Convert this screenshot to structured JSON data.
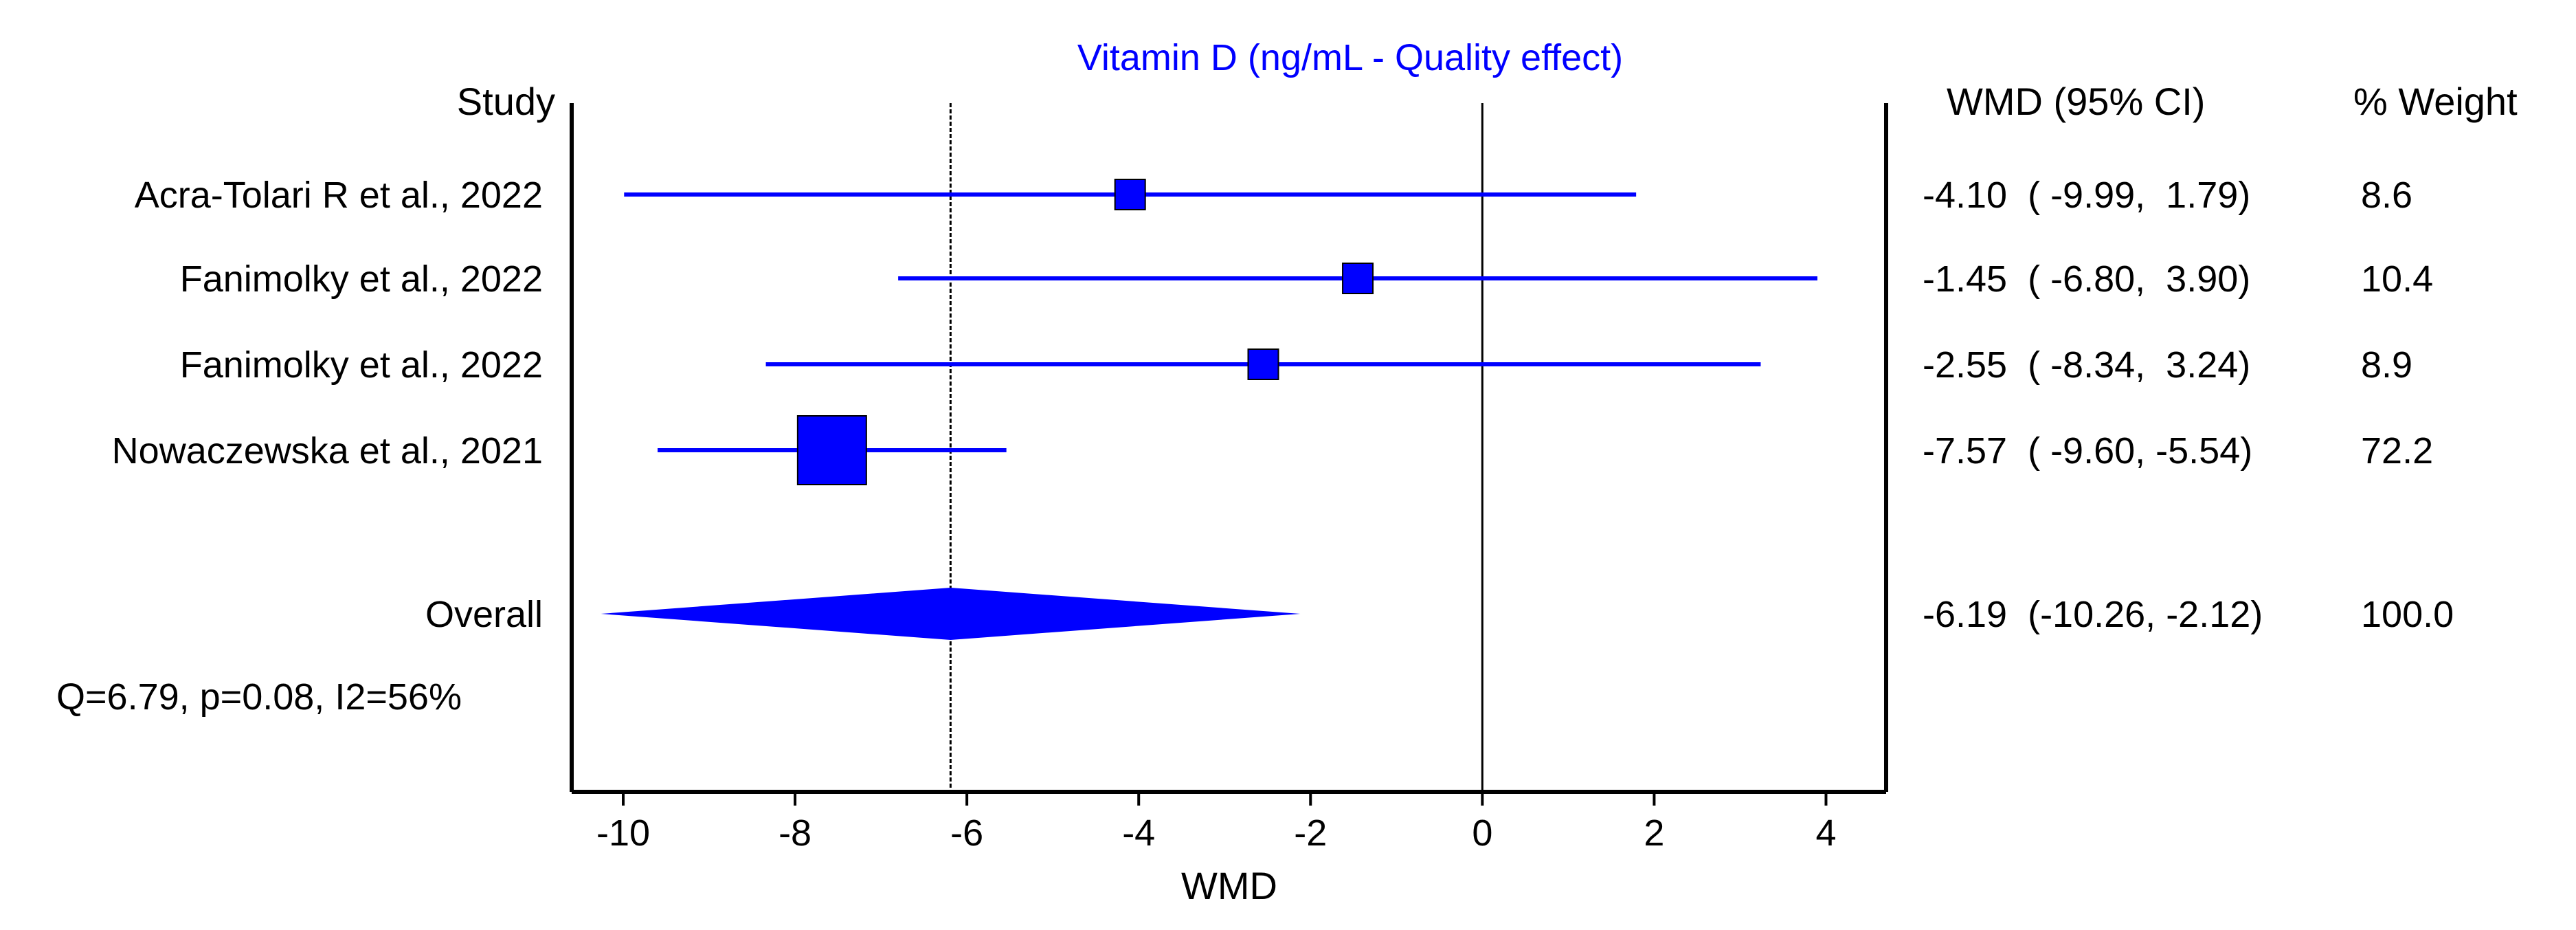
{
  "chart_data": {
    "type": "forest",
    "title": "Vitamin D (ng/mL - Quality effect)",
    "xlabel": "WMD",
    "study_header": "Study",
    "ci_header": "WMD (95% CI)",
    "weight_header": "% Weight",
    "xlim": [
      -10.6,
      4.7
    ],
    "xticks": [
      -10,
      -8,
      -6,
      -4,
      -2,
      0,
      2,
      4
    ],
    "xtick_labels": [
      "-10",
      "-8",
      "-6",
      "-4",
      "-2",
      "0",
      "2",
      "4"
    ],
    "null_line": 0,
    "marker_color": "#0000ff",
    "studies": [
      {
        "label": "Acra-Tolari R et al., 2022",
        "effect": -4.1,
        "lower": -9.99,
        "upper": 1.79,
        "ci_text": "-4.10  ( -9.99,  1.79)",
        "weight": 8.6,
        "weight_text": "8.6"
      },
      {
        "label": "Fanimolky et al., 2022",
        "effect": -1.45,
        "lower": -6.8,
        "upper": 3.9,
        "ci_text": "-1.45  ( -6.80,  3.90)",
        "weight": 10.4,
        "weight_text": "10.4"
      },
      {
        "label": "Fanimolky et al., 2022",
        "effect": -2.55,
        "lower": -8.34,
        "upper": 3.24,
        "ci_text": "-2.55  ( -8.34,  3.24)",
        "weight": 8.9,
        "weight_text": "8.9"
      },
      {
        "label": "Nowaczewska et al., 2021",
        "effect": -7.57,
        "lower": -9.6,
        "upper": -5.54,
        "ci_text": "-7.57  ( -9.60, -5.54)",
        "weight": 72.2,
        "weight_text": "72.2"
      }
    ],
    "overall": {
      "label": "Overall",
      "effect": -6.19,
      "lower": -10.26,
      "upper": -2.12,
      "ci_text": "-6.19  (-10.26, -2.12)",
      "weight_text": "100.0"
    },
    "heterogeneity": "Q=6.79, p=0.08, I2=56%"
  }
}
